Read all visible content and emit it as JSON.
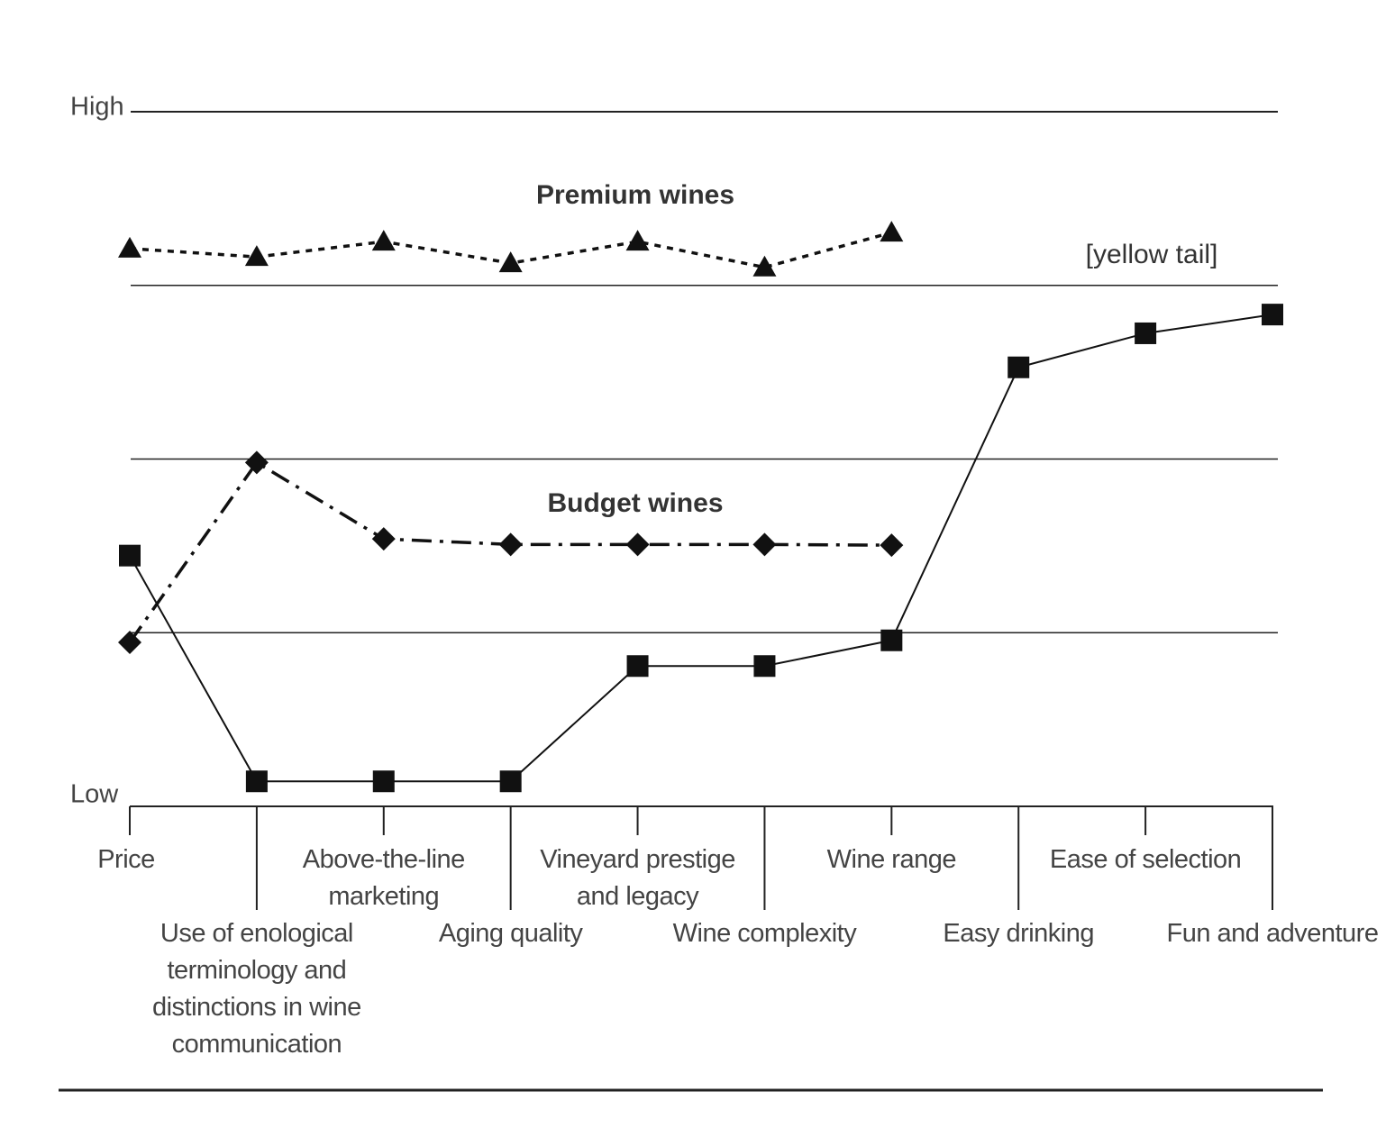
{
  "chart_data": {
    "type": "line",
    "categories": [
      "Price",
      "Use of enological terminology and distinctions in wine communication",
      "Above-the-line marketing",
      "Aging quality",
      "Vineyard prestige and legacy",
      "Wine complexity",
      "Wine range",
      "Easy drinking",
      "Ease of selection",
      "Fun and adventure"
    ],
    "series": [
      {
        "name": "Premium wines",
        "color": "#111111",
        "dash": "dotted",
        "marker": "triangle",
        "values": [
          8.03,
          7.91,
          8.13,
          7.82,
          8.13,
          7.76,
          8.26,
          null,
          null,
          null
        ]
      },
      {
        "name": "Budget wines",
        "color": "#111111",
        "dash": "dash-dot",
        "marker": "diamond",
        "values": [
          2.36,
          4.95,
          3.85,
          3.77,
          3.77,
          3.77,
          3.76,
          null,
          null,
          null
        ]
      },
      {
        "name": "[yellow tail]",
        "color": "#111111",
        "dash": "solid",
        "marker": "square",
        "values": [
          3.61,
          0.36,
          0.36,
          0.36,
          2.02,
          2.02,
          2.39,
          6.32,
          6.81,
          7.08
        ]
      }
    ],
    "ylim": [
      0,
      10
    ],
    "yticks": [
      {
        "value": 0,
        "label": "Low"
      },
      {
        "value": 10,
        "label": "High"
      }
    ],
    "gridlines": [
      2.5,
      5,
      7.5
    ]
  }
}
